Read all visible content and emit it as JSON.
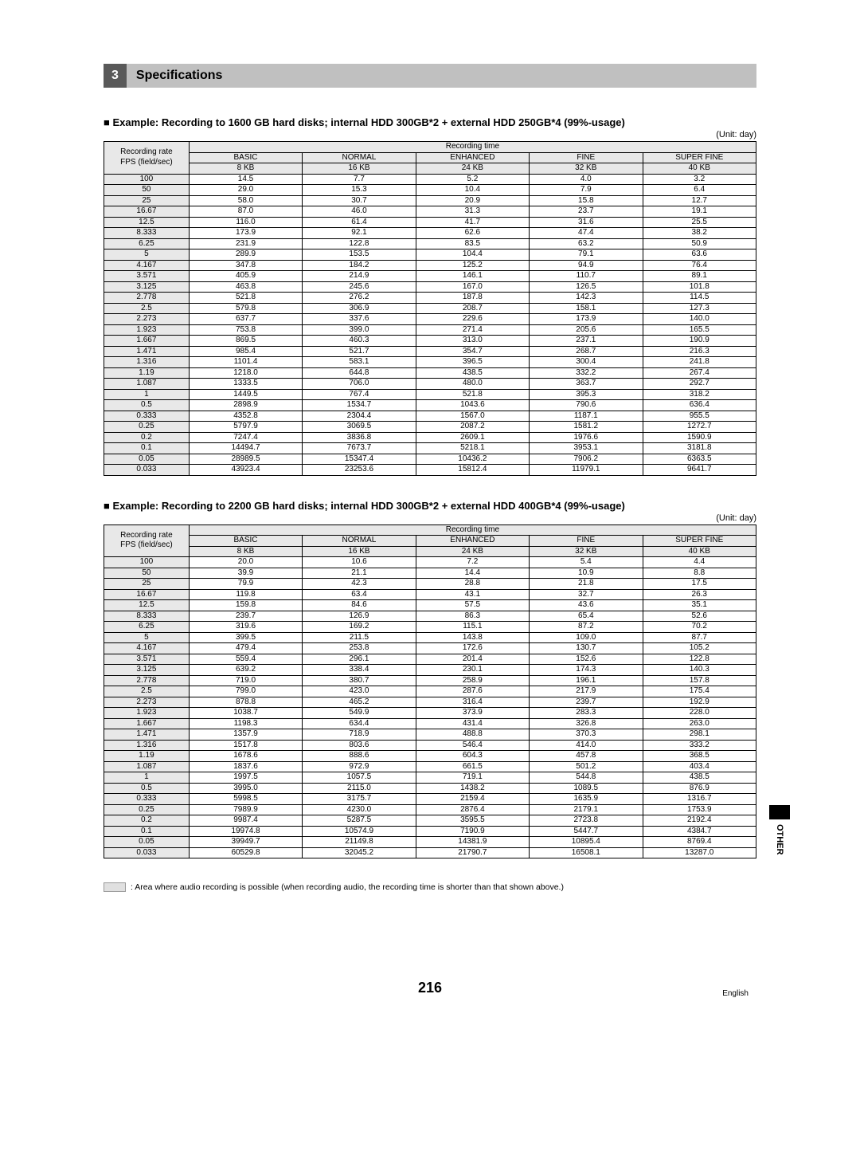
{
  "section": {
    "number": "3",
    "title": "Specifications"
  },
  "tableA": {
    "heading": "■ Example: Recording to 1600 GB hard disks; internal HDD 300GB*2 + external HDD 250GB*4 (99%-usage)",
    "unit": "(Unit: day)",
    "row_header_line1": "Recording rate",
    "row_header_line2": "FPS (field/sec)",
    "top_header": "Recording time",
    "quality_names": [
      "BASIC",
      "NORMAL",
      "ENHANCED",
      "FINE",
      "SUPER FINE"
    ],
    "quality_sizes": [
      "8 KB",
      "16 KB",
      "24 KB",
      "32 KB",
      "40 KB"
    ],
    "rows": [
      {
        "fps": "100",
        "v": [
          "14.5",
          "7.7",
          "5.2",
          "4.0",
          "3.2"
        ]
      },
      {
        "fps": "50",
        "v": [
          "29.0",
          "15.3",
          "10.4",
          "7.9",
          "6.4"
        ]
      },
      {
        "fps": "25",
        "v": [
          "58.0",
          "30.7",
          "20.9",
          "15.8",
          "12.7"
        ]
      },
      {
        "fps": "16.67",
        "v": [
          "87.0",
          "46.0",
          "31.3",
          "23.7",
          "19.1"
        ]
      },
      {
        "fps": "12.5",
        "v": [
          "116.0",
          "61.4",
          "41.7",
          "31.6",
          "25.5"
        ]
      },
      {
        "fps": "8.333",
        "v": [
          "173.9",
          "92.1",
          "62.6",
          "47.4",
          "38.2"
        ]
      },
      {
        "fps": "6.25",
        "v": [
          "231.9",
          "122.8",
          "83.5",
          "63.2",
          "50.9"
        ]
      },
      {
        "fps": "5",
        "v": [
          "289.9",
          "153.5",
          "104.4",
          "79.1",
          "63.6"
        ]
      },
      {
        "fps": "4.167",
        "v": [
          "347.8",
          "184.2",
          "125.2",
          "94.9",
          "76.4"
        ]
      },
      {
        "fps": "3.571",
        "v": [
          "405.9",
          "214.9",
          "146.1",
          "110.7",
          "89.1"
        ]
      },
      {
        "fps": "3.125",
        "v": [
          "463.8",
          "245.6",
          "167.0",
          "126.5",
          "101.8"
        ]
      },
      {
        "fps": "2.778",
        "v": [
          "521.8",
          "276.2",
          "187.8",
          "142.3",
          "114.5"
        ]
      },
      {
        "fps": "2.5",
        "v": [
          "579.8",
          "306.9",
          "208.7",
          "158.1",
          "127.3"
        ]
      },
      {
        "fps": "2.273",
        "v": [
          "637.7",
          "337.6",
          "229.6",
          "173.9",
          "140.0"
        ]
      },
      {
        "fps": "1.923",
        "v": [
          "753.8",
          "399.0",
          "271.4",
          "205.6",
          "165.5"
        ]
      },
      {
        "fps": "1.667",
        "v": [
          "869.5",
          "460.3",
          "313.0",
          "237.1",
          "190.9"
        ]
      },
      {
        "fps": "1.471",
        "v": [
          "985.4",
          "521.7",
          "354.7",
          "268.7",
          "216.3"
        ]
      },
      {
        "fps": "1.316",
        "v": [
          "1101.4",
          "583.1",
          "396.5",
          "300.4",
          "241.8"
        ]
      },
      {
        "fps": "1.19",
        "v": [
          "1218.0",
          "644.8",
          "438.5",
          "332.2",
          "267.4"
        ]
      },
      {
        "fps": "1.087",
        "v": [
          "1333.5",
          "706.0",
          "480.0",
          "363.7",
          "292.7"
        ]
      },
      {
        "fps": "1",
        "v": [
          "1449.5",
          "767.4",
          "521.8",
          "395.3",
          "318.2"
        ]
      },
      {
        "fps": "0.5",
        "v": [
          "2898.9",
          "1534.7",
          "1043.6",
          "790.6",
          "636.4"
        ]
      },
      {
        "fps": "0.333",
        "v": [
          "4352.8",
          "2304.4",
          "1567.0",
          "1187.1",
          "955.5"
        ]
      },
      {
        "fps": "0.25",
        "v": [
          "5797.9",
          "3069.5",
          "2087.2",
          "1581.2",
          "1272.7"
        ]
      },
      {
        "fps": "0.2",
        "v": [
          "7247.4",
          "3836.8",
          "2609.1",
          "1976.6",
          "1590.9"
        ]
      },
      {
        "fps": "0.1",
        "v": [
          "14494.7",
          "7673.7",
          "5218.1",
          "3953.1",
          "3181.8"
        ]
      },
      {
        "fps": "0.05",
        "v": [
          "28989.5",
          "15347.4",
          "10436.2",
          "7906.2",
          "6363.5"
        ]
      },
      {
        "fps": "0.033",
        "v": [
          "43923.4",
          "23253.6",
          "15812.4",
          "11979.1",
          "9641.7"
        ]
      }
    ],
    "audio_shaded_count": 18
  },
  "tableB": {
    "heading": "■ Example: Recording to 2200 GB hard disks; internal HDD 300GB*2 + external HDD 400GB*4 (99%-usage)",
    "unit": "(Unit: day)",
    "row_header_line1": "Recording rate",
    "row_header_line2": "FPS (field/sec)",
    "top_header": "Recording time",
    "quality_names": [
      "BASIC",
      "NORMAL",
      "ENHANCED",
      "FINE",
      "SUPER FINE"
    ],
    "quality_sizes": [
      "8 KB",
      "16 KB",
      "24 KB",
      "32 KB",
      "40 KB"
    ],
    "rows": [
      {
        "fps": "100",
        "v": [
          "20.0",
          "10.6",
          "7.2",
          "5.4",
          "4.4"
        ]
      },
      {
        "fps": "50",
        "v": [
          "39.9",
          "21.1",
          "14.4",
          "10.9",
          "8.8"
        ]
      },
      {
        "fps": "25",
        "v": [
          "79.9",
          "42.3",
          "28.8",
          "21.8",
          "17.5"
        ]
      },
      {
        "fps": "16.67",
        "v": [
          "119.8",
          "63.4",
          "43.1",
          "32.7",
          "26.3"
        ]
      },
      {
        "fps": "12.5",
        "v": [
          "159.8",
          "84.6",
          "57.5",
          "43.6",
          "35.1"
        ]
      },
      {
        "fps": "8.333",
        "v": [
          "239.7",
          "126.9",
          "86.3",
          "65.4",
          "52.6"
        ]
      },
      {
        "fps": "6.25",
        "v": [
          "319.6",
          "169.2",
          "115.1",
          "87.2",
          "70.2"
        ]
      },
      {
        "fps": "5",
        "v": [
          "399.5",
          "211.5",
          "143.8",
          "109.0",
          "87.7"
        ]
      },
      {
        "fps": "4.167",
        "v": [
          "479.4",
          "253.8",
          "172.6",
          "130.7",
          "105.2"
        ]
      },
      {
        "fps": "3.571",
        "v": [
          "559.4",
          "296.1",
          "201.4",
          "152.6",
          "122.8"
        ]
      },
      {
        "fps": "3.125",
        "v": [
          "639.2",
          "338.4",
          "230.1",
          "174.3",
          "140.3"
        ]
      },
      {
        "fps": "2.778",
        "v": [
          "719.0",
          "380.7",
          "258.9",
          "196.1",
          "157.8"
        ]
      },
      {
        "fps": "2.5",
        "v": [
          "799.0",
          "423.0",
          "287.6",
          "217.9",
          "175.4"
        ]
      },
      {
        "fps": "2.273",
        "v": [
          "878.8",
          "465.2",
          "316.4",
          "239.7",
          "192.9"
        ]
      },
      {
        "fps": "1.923",
        "v": [
          "1038.7",
          "549.9",
          "373.9",
          "283.3",
          "228.0"
        ]
      },
      {
        "fps": "1.667",
        "v": [
          "1198.3",
          "634.4",
          "431.4",
          "326.8",
          "263.0"
        ]
      },
      {
        "fps": "1.471",
        "v": [
          "1357.9",
          "718.9",
          "488.8",
          "370.3",
          "298.1"
        ]
      },
      {
        "fps": "1.316",
        "v": [
          "1517.8",
          "803.6",
          "546.4",
          "414.0",
          "333.2"
        ]
      },
      {
        "fps": "1.19",
        "v": [
          "1678.6",
          "888.6",
          "604.3",
          "457.8",
          "368.5"
        ]
      },
      {
        "fps": "1.087",
        "v": [
          "1837.6",
          "972.9",
          "661.5",
          "501.2",
          "403.4"
        ]
      },
      {
        "fps": "1",
        "v": [
          "1997.5",
          "1057.5",
          "719.1",
          "544.8",
          "438.5"
        ]
      },
      {
        "fps": "0.5",
        "v": [
          "3995.0",
          "2115.0",
          "1438.2",
          "1089.5",
          "876.9"
        ]
      },
      {
        "fps": "0.333",
        "v": [
          "5998.5",
          "3175.7",
          "2159.4",
          "1635.9",
          "1316.7"
        ]
      },
      {
        "fps": "0.25",
        "v": [
          "7989.9",
          "4230.0",
          "2876.4",
          "2179.1",
          "1753.9"
        ]
      },
      {
        "fps": "0.2",
        "v": [
          "9987.4",
          "5287.5",
          "3595.5",
          "2723.8",
          "2192.4"
        ]
      },
      {
        "fps": "0.1",
        "v": [
          "19974.8",
          "10574.9",
          "7190.9",
          "5447.7",
          "4384.7"
        ]
      },
      {
        "fps": "0.05",
        "v": [
          "39949.7",
          "21149.8",
          "14381.9",
          "10895.4",
          "8769.4"
        ]
      },
      {
        "fps": "0.033",
        "v": [
          "60529.8",
          "32045.2",
          "21790.7",
          "16508.1",
          "13287.0"
        ]
      }
    ],
    "audio_shaded_count": 18
  },
  "legend": ": Area where audio recording is possible (when recording audio, the recording time is shorter than that shown above.)",
  "side_tab": "OTHER",
  "page_num": "216",
  "language": "English",
  "colors": {
    "section_num_bg": "#595959",
    "section_title_bg": "#c0c0c0",
    "header_bg": "#e8e8e8",
    "shaded_bg": "#e0e0e0"
  }
}
